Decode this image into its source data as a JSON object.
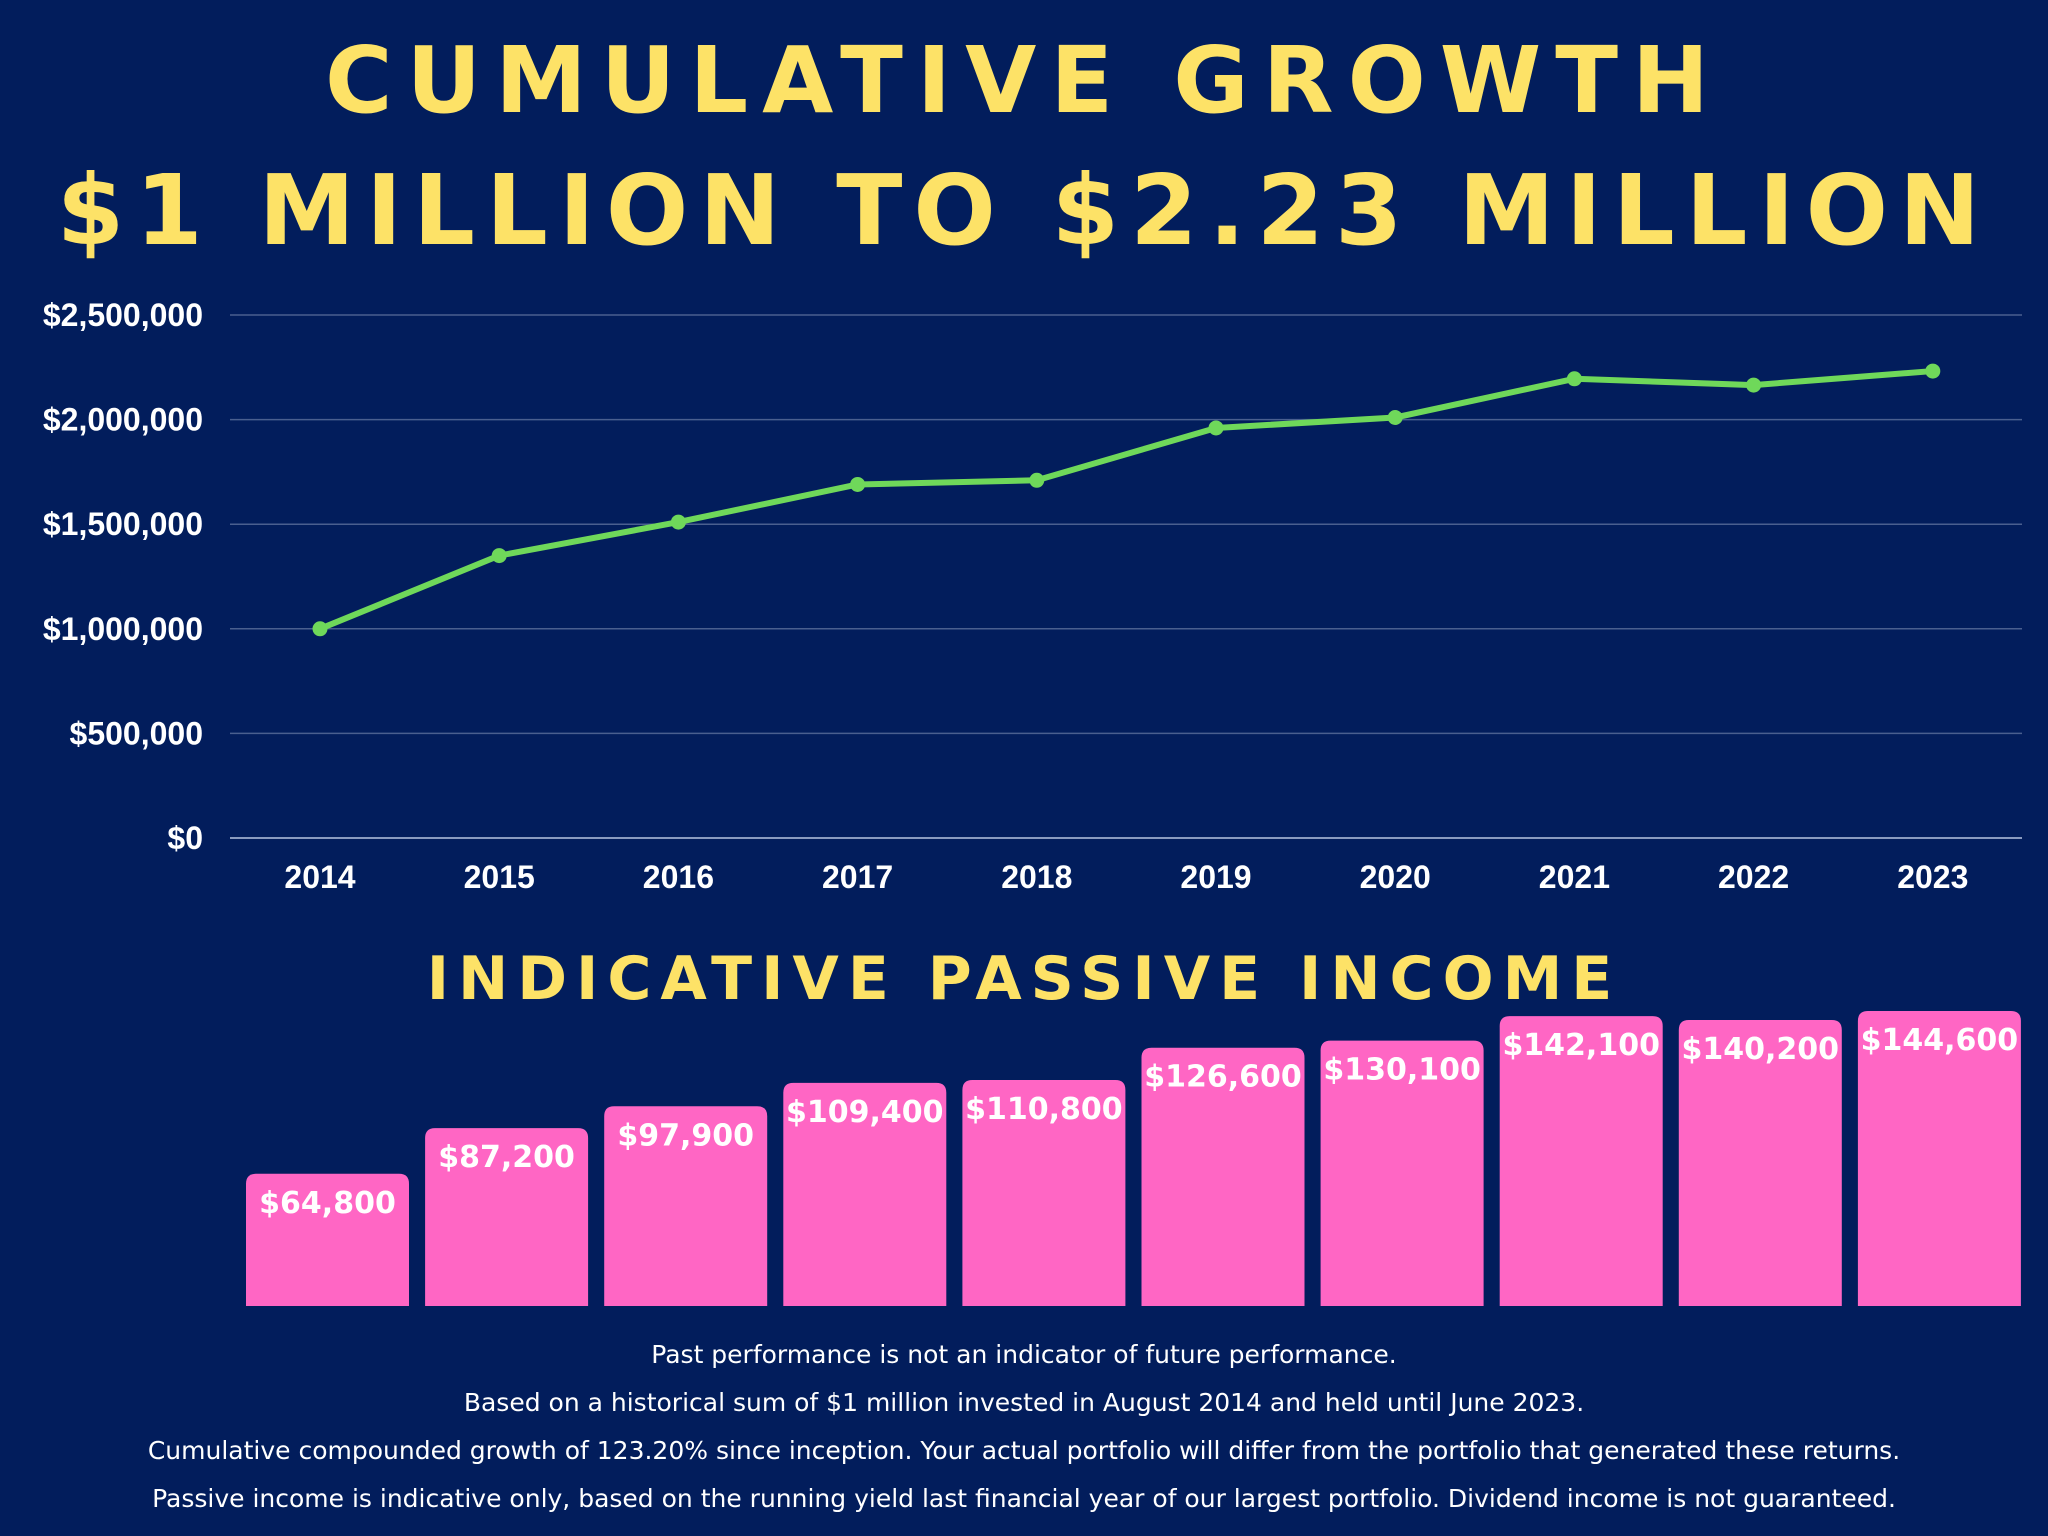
{
  "title": {
    "line1": "CUMULATIVE GROWTH",
    "line2": "$1 MILLION TO $2.23 MILLION"
  },
  "income_title": "INDICATIVE PASSIVE INCOME",
  "colors": {
    "background": "#021d5c",
    "title": "#fde267",
    "line": "#6fd85a",
    "bar": "#ff66c4",
    "gridline": "#4a5f8f",
    "text": "#ffffff"
  },
  "chart_data": [
    {
      "type": "line",
      "title": "CUMULATIVE GROWTH $1 MILLION TO $2.23 MILLION",
      "xlabel": "",
      "ylabel": "",
      "categories": [
        "2014",
        "2015",
        "2016",
        "2017",
        "2018",
        "2019",
        "2020",
        "2021",
        "2022",
        "2023"
      ],
      "values": [
        1000000,
        1350000,
        1510000,
        1690000,
        1710000,
        1960000,
        2010000,
        2195000,
        2165000,
        2232000
      ],
      "ylim": [
        0,
        2500000
      ],
      "yticks": [
        0,
        500000,
        1000000,
        1500000,
        2000000,
        2500000
      ],
      "ytick_labels": [
        "$0",
        "$500,000",
        "$1,000,000",
        "$1,500,000",
        "$2,000,000",
        "$2,500,000"
      ],
      "grid": true,
      "markers": true
    },
    {
      "type": "bar",
      "title": "INDICATIVE PASSIVE INCOME",
      "categories": [
        "2014",
        "2015",
        "2016",
        "2017",
        "2018",
        "2019",
        "2020",
        "2021",
        "2022",
        "2023"
      ],
      "values": [
        64800,
        87200,
        97900,
        109400,
        110800,
        126600,
        130100,
        142100,
        140200,
        144600
      ],
      "data_labels": [
        "$64,800",
        "$87,200",
        "$97,900",
        "$109,400",
        "$110,800",
        "$126,600",
        "$130,100",
        "$142,100",
        "$140,200",
        "$144,600"
      ],
      "grid": false,
      "axes": false
    }
  ],
  "footnotes": [
    "Past performance is not an indicator of future performance.",
    "Based on a historical sum of $1 million invested in August 2014 and held until June 2023.",
    "Cumulative compounded growth of 123.20% since inception. Your actual portfolio will differ from the portfolio that generated these returns.",
    "Passive income is indicative only, based on the running yield last financial year of our largest portfolio. Dividend income is not guaranteed."
  ]
}
